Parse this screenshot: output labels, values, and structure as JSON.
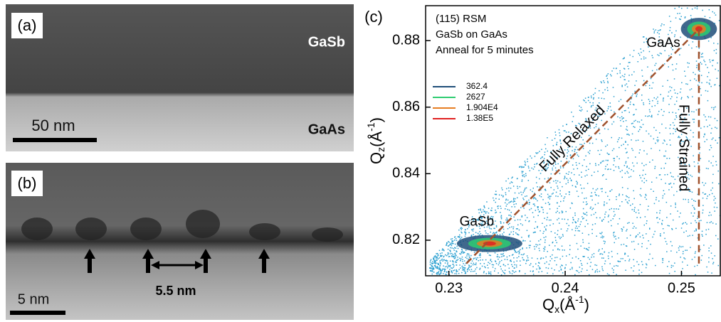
{
  "panel_a": {
    "label": "(a)",
    "top_layer": "GaSb",
    "bottom_layer": "GaAs",
    "scale_bar": "50 nm"
  },
  "panel_b": {
    "label": "(b)",
    "spacing": "5.5 nm",
    "scale_bar": "5 nm"
  },
  "chart_data": {
    "type": "scatter",
    "panel_label": "(c)",
    "annotations": [
      "(115) RSM",
      "GaSb on GaAs",
      "Anneal for 5 minutes"
    ],
    "xlabel": [
      "Q",
      "x",
      "(Å",
      "-1",
      ")"
    ],
    "ylabel": [
      "Q",
      "z",
      "(Å",
      "-1",
      ")"
    ],
    "xlim": [
      0.228,
      0.2534
    ],
    "ylim": [
      0.8093,
      0.8905
    ],
    "xticks": [
      0.23,
      0.24,
      0.25
    ],
    "yticks": [
      0.82,
      0.84,
      0.86,
      0.88
    ],
    "contour_legend": [
      {
        "name": "362.4",
        "color": "#1f4e79"
      },
      {
        "name": "2627",
        "color": "#2ecc71"
      },
      {
        "name": "1.904E4",
        "color": "#e67e22"
      },
      {
        "name": "1.38E5",
        "color": "#e02020"
      }
    ],
    "peaks": [
      {
        "name": "GaSb",
        "x": 0.2335,
        "y": 0.819
      },
      {
        "name": "GaAs",
        "x": 0.2515,
        "y": 0.8835
      }
    ],
    "lines": [
      {
        "name": "Fully Relaxed",
        "color": "#a0522d",
        "x": [
          0.2315,
          0.2515
        ],
        "y": [
          0.813,
          0.8835
        ]
      },
      {
        "name": "Fully Strained",
        "color": "#a0522d",
        "x": [
          0.2515,
          0.2515
        ],
        "y": [
          0.8835,
          0.812
        ]
      }
    ]
  }
}
